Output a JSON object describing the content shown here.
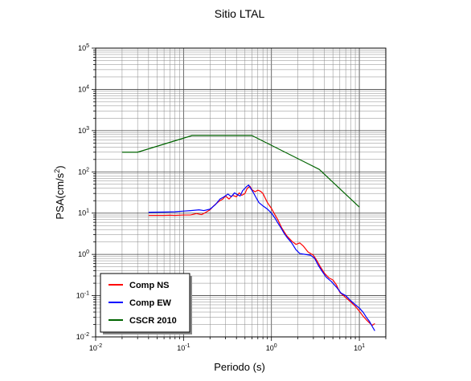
{
  "chart_data": {
    "type": "line",
    "title": "Sitio LTAL",
    "xlabel": "Periodo (s)",
    "ylabel": "PSA(cm/s²)",
    "ylabel_parts": [
      "PSA(cm/s",
      "2",
      ")"
    ],
    "xscale": "log",
    "yscale": "log",
    "xlim": [
      0.01,
      20
    ],
    "ylim": [
      0.01,
      100000
    ],
    "grid": true,
    "legend_position": "bottom-left",
    "x_ticks": [
      {
        "value": 0.01,
        "base": "10",
        "exp": "-2"
      },
      {
        "value": 0.1,
        "base": "10",
        "exp": "-1"
      },
      {
        "value": 1,
        "base": "10",
        "exp": "0"
      },
      {
        "value": 10,
        "base": "10",
        "exp": "1"
      }
    ],
    "y_ticks": [
      {
        "value": 0.01,
        "base": "10",
        "exp": "-2"
      },
      {
        "value": 0.1,
        "base": "10",
        "exp": "-1"
      },
      {
        "value": 1,
        "base": "10",
        "exp": "0"
      },
      {
        "value": 10,
        "base": "10",
        "exp": "1"
      },
      {
        "value": 100,
        "base": "10",
        "exp": "2"
      },
      {
        "value": 1000,
        "base": "10",
        "exp": "3"
      },
      {
        "value": 10000,
        "base": "10",
        "exp": "4"
      },
      {
        "value": 100000,
        "base": "10",
        "exp": "5"
      }
    ],
    "series": [
      {
        "name": "Comp NS",
        "color": "#ff0000",
        "points": [
          [
            0.04,
            8.8
          ],
          [
            0.05,
            8.8
          ],
          [
            0.06,
            8.8
          ],
          [
            0.07,
            8.9
          ],
          [
            0.08,
            8.8
          ],
          [
            0.1,
            9.0
          ],
          [
            0.12,
            9.0
          ],
          [
            0.14,
            9.8
          ],
          [
            0.16,
            9.2
          ],
          [
            0.18,
            10.5
          ],
          [
            0.2,
            12
          ],
          [
            0.22,
            15
          ],
          [
            0.25,
            19
          ],
          [
            0.28,
            22
          ],
          [
            0.3,
            26
          ],
          [
            0.33,
            22
          ],
          [
            0.36,
            27
          ],
          [
            0.4,
            25
          ],
          [
            0.43,
            31
          ],
          [
            0.46,
            27
          ],
          [
            0.5,
            30
          ],
          [
            0.53,
            40
          ],
          [
            0.57,
            45
          ],
          [
            0.6,
            37
          ],
          [
            0.65,
            33
          ],
          [
            0.7,
            36
          ],
          [
            0.75,
            34
          ],
          [
            0.8,
            30
          ],
          [
            0.9,
            18
          ],
          [
            1.0,
            13
          ],
          [
            1.1,
            9
          ],
          [
            1.2,
            6.5
          ],
          [
            1.3,
            4.5
          ],
          [
            1.4,
            3.5
          ],
          [
            1.5,
            2.8
          ],
          [
            1.7,
            2.1
          ],
          [
            1.9,
            1.75
          ],
          [
            2.1,
            1.9
          ],
          [
            2.3,
            1.6
          ],
          [
            2.6,
            1.15
          ],
          [
            3.0,
            0.95
          ],
          [
            3.3,
            0.7
          ],
          [
            3.6,
            0.5
          ],
          [
            4.0,
            0.35
          ],
          [
            4.5,
            0.27
          ],
          [
            5.0,
            0.24
          ],
          [
            5.5,
            0.18
          ],
          [
            6.0,
            0.12
          ],
          [
            7.0,
            0.09
          ],
          [
            8.0,
            0.07
          ],
          [
            9.0,
            0.055
          ],
          [
            10,
            0.042
          ],
          [
            11,
            0.032
          ],
          [
            12,
            0.026
          ],
          [
            13,
            0.022
          ],
          [
            14,
            0.019
          ],
          [
            15,
            0.021
          ]
        ]
      },
      {
        "name": "Comp EW",
        "color": "#0000ff",
        "points": [
          [
            0.04,
            10.5
          ],
          [
            0.06,
            10.6
          ],
          [
            0.08,
            10.8
          ],
          [
            0.1,
            11.2
          ],
          [
            0.12,
            11.5
          ],
          [
            0.15,
            12
          ],
          [
            0.17,
            11.5
          ],
          [
            0.2,
            12.5
          ],
          [
            0.23,
            16
          ],
          [
            0.26,
            22
          ],
          [
            0.29,
            25
          ],
          [
            0.32,
            29
          ],
          [
            0.35,
            25
          ],
          [
            0.38,
            31
          ],
          [
            0.41,
            28
          ],
          [
            0.44,
            26
          ],
          [
            0.47,
            35
          ],
          [
            0.52,
            44
          ],
          [
            0.55,
            48
          ],
          [
            0.58,
            40
          ],
          [
            0.62,
            32
          ],
          [
            0.66,
            25
          ],
          [
            0.72,
            18
          ],
          [
            0.8,
            15
          ],
          [
            0.9,
            12.5
          ],
          [
            1.0,
            10
          ],
          [
            1.1,
            7.5
          ],
          [
            1.2,
            5.5
          ],
          [
            1.3,
            4.2
          ],
          [
            1.4,
            3.2
          ],
          [
            1.5,
            2.6
          ],
          [
            1.7,
            1.9
          ],
          [
            1.9,
            1.3
          ],
          [
            2.1,
            1.05
          ],
          [
            2.4,
            1.0
          ],
          [
            2.8,
            0.95
          ],
          [
            3.1,
            0.8
          ],
          [
            3.4,
            0.55
          ],
          [
            3.8,
            0.38
          ],
          [
            4.2,
            0.28
          ],
          [
            4.8,
            0.22
          ],
          [
            5.5,
            0.16
          ],
          [
            6.2,
            0.115
          ],
          [
            7.0,
            0.1
          ],
          [
            8.0,
            0.075
          ],
          [
            9.0,
            0.06
          ],
          [
            10,
            0.05
          ],
          [
            11,
            0.04
          ],
          [
            12,
            0.03
          ],
          [
            13,
            0.024
          ],
          [
            14,
            0.018
          ],
          [
            15,
            0.014
          ]
        ]
      },
      {
        "name": "CSCR 2010",
        "color": "#006400",
        "points": [
          [
            0.02,
            300
          ],
          [
            0.03,
            300
          ],
          [
            0.125,
            760
          ],
          [
            0.6,
            760
          ],
          [
            3.5,
            115
          ],
          [
            10,
            14
          ]
        ]
      }
    ]
  }
}
